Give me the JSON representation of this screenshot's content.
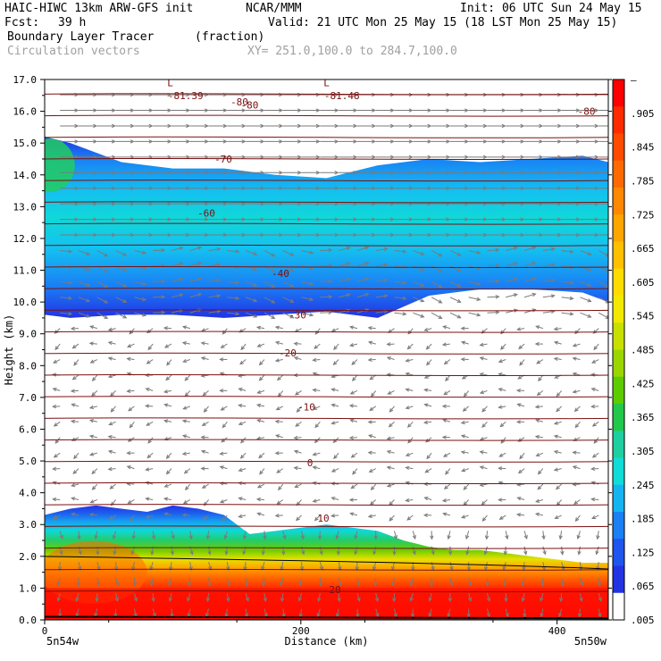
{
  "header": {
    "model": "HAIC-HIWC 13km ARW-GFS init",
    "org": "NCAR/MMM",
    "init": "Init: 06 UTC Sun 24 May 15",
    "fcst_label": "Fcst:",
    "fcst_value": "39 h",
    "valid": "Valid: 21 UTC Mon 25 May 15 (18 LST Mon 25 May 15)",
    "field": "Boundary Layer Tracer",
    "units": "(fraction)",
    "vectors": "Circulation vectors",
    "xy": "XY= 251.0,100.0 to 284.7,100.0"
  },
  "chart_data": {
    "type": "heatmap",
    "xlabel": "Distance (km)",
    "ylabel": "Height (km)",
    "xlim": [
      0,
      440
    ],
    "ylim": [
      0.0,
      17.0
    ],
    "x_ticks": [
      0,
      200,
      400
    ],
    "x_tick_labels": [
      "0",
      "200",
      "400"
    ],
    "x_end_labels": [
      "5n54w",
      "5n50w"
    ],
    "y_ticks": [
      "0.0",
      "1.0",
      "2.0",
      "3.0",
      "4.0",
      "5.0",
      "6.0",
      "7.0",
      "8.0",
      "9.0",
      "10.0",
      "11.0",
      "12.0",
      "13.0",
      "14.0",
      "15.0",
      "16.0",
      "17.0"
    ],
    "colorbar": {
      "labels": [
        "–",
        ".905",
        ".845",
        ".785",
        ".725",
        ".665",
        ".605",
        ".545",
        ".485",
        ".425",
        ".365",
        ".305",
        ".245",
        ".185",
        ".125",
        ".065",
        ".005"
      ],
      "colors": [
        "#ff0000",
        "#ff2a00",
        "#ff4a00",
        "#ff6a00",
        "#ff8800",
        "#ffa500",
        "#ffc000",
        "#ffdc00",
        "#f2e800",
        "#c8e000",
        "#9ad700",
        "#5ccb00",
        "#22c84a",
        "#1ecfa0",
        "#10dcd8",
        "#14b4f0",
        "#1a80f4",
        "#1e55ee",
        "#2233e4",
        "#ffffff"
      ]
    },
    "isotherms": [
      {
        "label": "20",
        "height": 0.95,
        "slope": 0.15
      },
      {
        "label": "10",
        "height": 3.2,
        "slope": 0.15
      },
      {
        "label": "0",
        "height": 4.95,
        "slope": 0.0
      },
      {
        "label": "-10",
        "height": 6.7,
        "slope": 0.0
      },
      {
        "label": "-20",
        "height": 8.4,
        "slope": 0.0
      },
      {
        "label": "-30",
        "height": 9.6,
        "slope": 0.0
      },
      {
        "label": "-40",
        "height": 10.9,
        "slope": 0.0
      },
      {
        "label": "-60",
        "height": 12.8,
        "slope": 0.0
      },
      {
        "label": "-70",
        "height": 14.5,
        "slope": 0.0
      },
      {
        "label": "-80",
        "height": 16.3,
        "slope": 0.0
      }
    ],
    "annotations": [
      {
        "text": "L",
        "x": 98,
        "y": 16.9
      },
      {
        "text": "-81.39",
        "x": 110,
        "y": 16.5
      },
      {
        "text": "L",
        "x": 220,
        "y": 16.9
      },
      {
        "text": "-81.48",
        "x": 232,
        "y": 16.5
      },
      {
        "text": "-80",
        "x": 160,
        "y": 16.2
      },
      {
        "text": "-80",
        "x": 423,
        "y": 16.0
      }
    ],
    "upper_layer": {
      "x": [
        0,
        20,
        60,
        100,
        140,
        180,
        220,
        260,
        300,
        340,
        380,
        420,
        440
      ],
      "top": [
        15.2,
        15.0,
        14.4,
        14.2,
        14.2,
        14.0,
        13.9,
        14.3,
        14.5,
        14.4,
        14.5,
        14.6,
        14.4
      ],
      "bottom": [
        9.6,
        9.5,
        9.6,
        9.6,
        9.5,
        9.6,
        9.7,
        9.5,
        10.2,
        10.4,
        10.4,
        10.3,
        10.0
      ]
    },
    "boundary_layer": {
      "x": [
        0,
        20,
        40,
        60,
        80,
        100,
        120,
        140,
        160,
        180,
        200,
        220,
        240,
        260,
        280,
        300,
        320,
        340,
        360,
        380,
        400,
        420,
        440
      ],
      "top": [
        3.3,
        3.5,
        3.6,
        3.5,
        3.4,
        3.6,
        3.5,
        3.3,
        2.7,
        2.8,
        2.9,
        3.0,
        2.9,
        2.8,
        2.5,
        2.3,
        2.2,
        2.2,
        2.1,
        2.0,
        1.9,
        1.8,
        1.8
      ]
    }
  }
}
